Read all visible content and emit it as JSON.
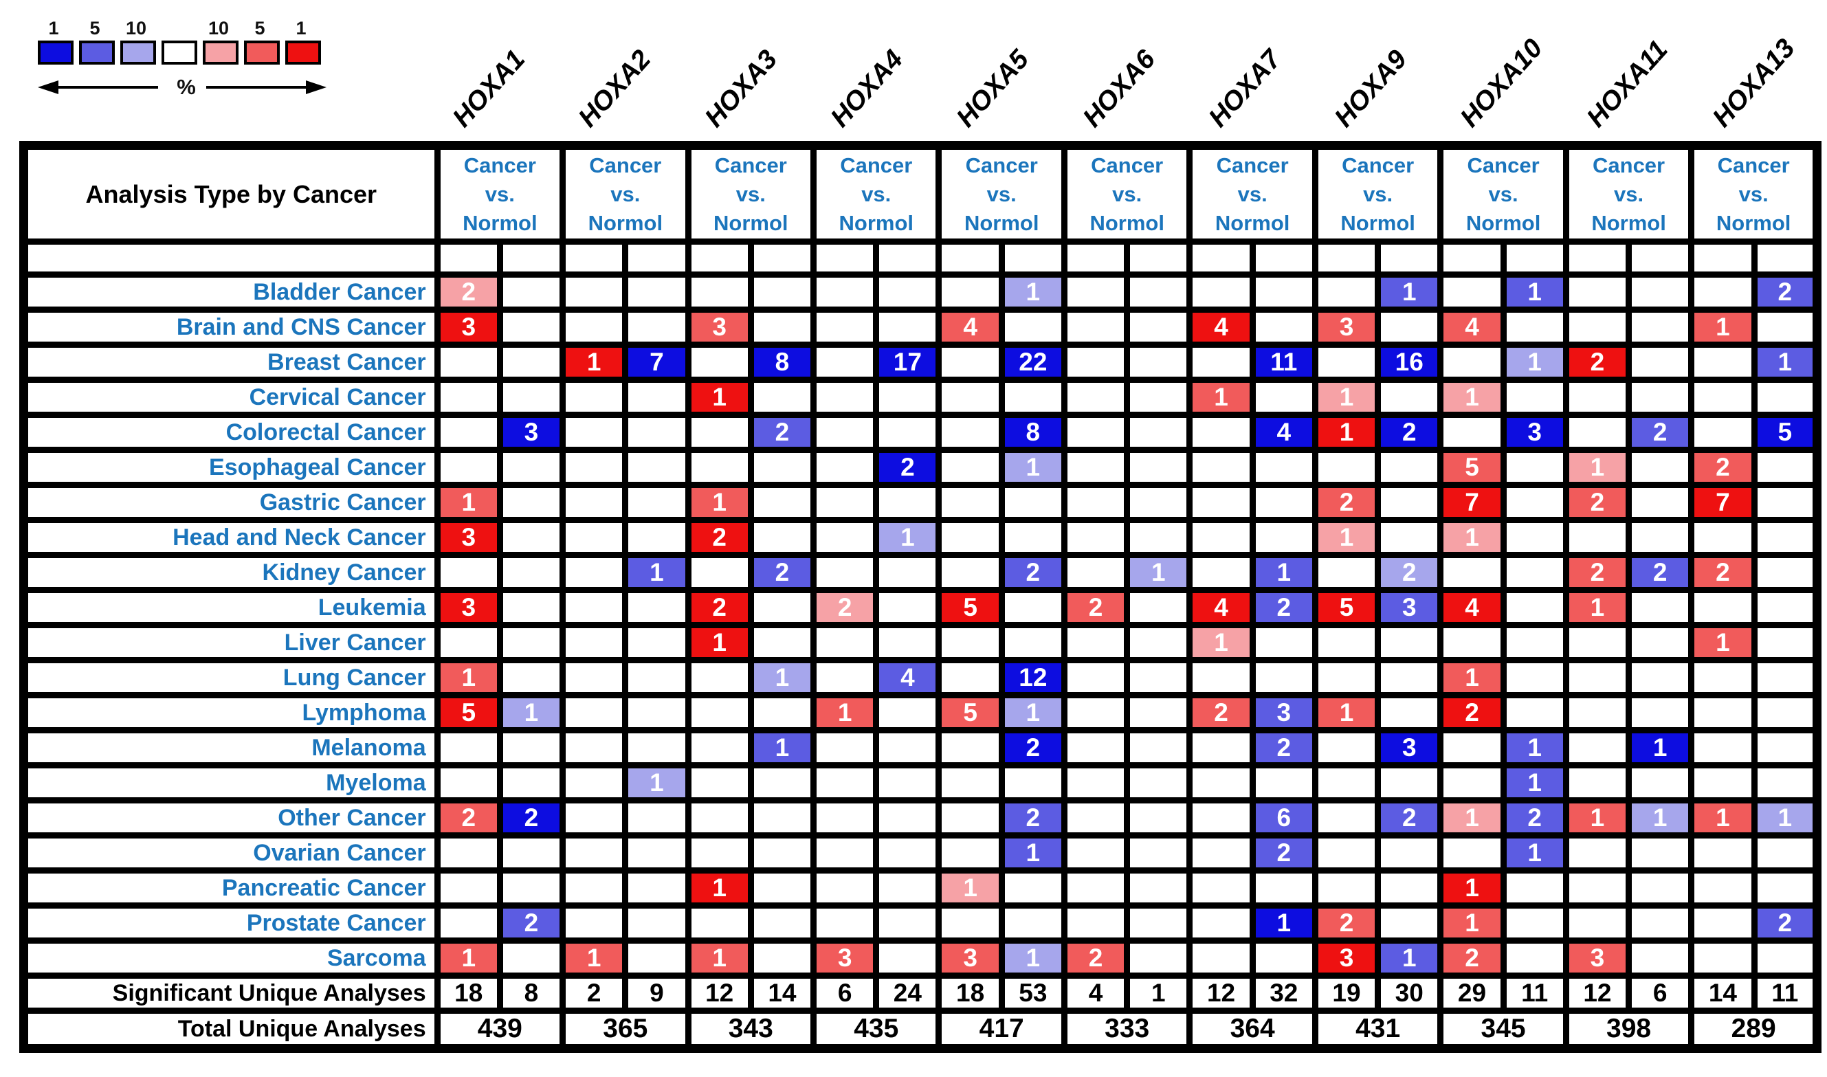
{
  "legend": {
    "percent_label": "%",
    "boxes": [
      {
        "label": "1",
        "tier": "b1"
      },
      {
        "label": "5",
        "tier": "b5"
      },
      {
        "label": "10",
        "tier": "b10"
      },
      {
        "label": "",
        "tier": "white"
      },
      {
        "label": "10",
        "tier": "r10"
      },
      {
        "label": "5",
        "tier": "r5"
      },
      {
        "label": "1",
        "tier": "r1"
      }
    ]
  },
  "palette": {
    "b1": "#0d0de0",
    "b5": "#5c5ce2",
    "b10": "#a6a6ec",
    "white": "#ffffff",
    "r10": "#f6a2a6",
    "r5": "#f15b5b",
    "r1": "#ee1111",
    "label_blue": "#1b75bc",
    "border_black": "#000000"
  },
  "chart_data": {
    "type": "heatmap",
    "corner_label": "Analysis Type by Cancer",
    "column_header_lines": [
      "Cancer",
      "vs.",
      "Normol"
    ],
    "columns": [
      "HOXA1",
      "HOXA2",
      "HOXA3",
      "HOXA4",
      "HOXA5",
      "HOXA6",
      "HOXA7",
      "HOXA9",
      "HOXA10",
      "HOXA11",
      "HOXA13"
    ],
    "subcolumns_per_gene": [
      "L",
      "R"
    ],
    "tier_meaning": "legend percentile tiers: b=blue scale 1/5/10%, r=red scale 10/5/1%",
    "rows": [
      {
        "label": "Bladder Cancer",
        "cells": [
          [
            0,
            "L",
            2,
            "r10"
          ],
          [
            4,
            "R",
            1,
            "b10"
          ],
          [
            7,
            "R",
            1,
            "b5"
          ],
          [
            8,
            "R",
            1,
            "b5"
          ],
          [
            10,
            "R",
            2,
            "b5"
          ]
        ]
      },
      {
        "label": "Brain and CNS Cancer",
        "cells": [
          [
            0,
            "L",
            3,
            "r1"
          ],
          [
            2,
            "L",
            3,
            "r5"
          ],
          [
            4,
            "L",
            4,
            "r5"
          ],
          [
            6,
            "L",
            4,
            "r1"
          ],
          [
            7,
            "L",
            3,
            "r5"
          ],
          [
            8,
            "L",
            4,
            "r5"
          ],
          [
            10,
            "L",
            1,
            "r5"
          ]
        ]
      },
      {
        "label": "Breast Cancer",
        "cells": [
          [
            1,
            "L",
            1,
            "r1"
          ],
          [
            1,
            "R",
            7,
            "b1"
          ],
          [
            2,
            "R",
            8,
            "b1"
          ],
          [
            3,
            "R",
            17,
            "b1"
          ],
          [
            4,
            "R",
            22,
            "b1"
          ],
          [
            6,
            "R",
            11,
            "b1"
          ],
          [
            7,
            "R",
            16,
            "b1"
          ],
          [
            8,
            "R",
            1,
            "b10"
          ],
          [
            9,
            "L",
            2,
            "r1"
          ],
          [
            10,
            "R",
            1,
            "b5"
          ]
        ]
      },
      {
        "label": "Cervical Cancer",
        "cells": [
          [
            2,
            "L",
            1,
            "r1"
          ],
          [
            6,
            "L",
            1,
            "r5"
          ],
          [
            7,
            "L",
            1,
            "r10"
          ],
          [
            8,
            "L",
            1,
            "r10"
          ]
        ]
      },
      {
        "label": "Colorectal Cancer",
        "cells": [
          [
            0,
            "R",
            3,
            "b1"
          ],
          [
            2,
            "R",
            2,
            "b5"
          ],
          [
            4,
            "R",
            8,
            "b1"
          ],
          [
            6,
            "R",
            4,
            "b1"
          ],
          [
            7,
            "L",
            1,
            "r1"
          ],
          [
            7,
            "R",
            2,
            "b1"
          ],
          [
            8,
            "R",
            3,
            "b1"
          ],
          [
            9,
            "R",
            2,
            "b5"
          ],
          [
            10,
            "R",
            5,
            "b1"
          ]
        ]
      },
      {
        "label": "Esophageal Cancer",
        "cells": [
          [
            3,
            "R",
            2,
            "b1"
          ],
          [
            4,
            "R",
            1,
            "b10"
          ],
          [
            8,
            "L",
            5,
            "r5"
          ],
          [
            9,
            "L",
            1,
            "r10"
          ],
          [
            10,
            "L",
            2,
            "r5"
          ]
        ]
      },
      {
        "label": "Gastric Cancer",
        "cells": [
          [
            0,
            "L",
            1,
            "r5"
          ],
          [
            2,
            "L",
            1,
            "r5"
          ],
          [
            7,
            "L",
            2,
            "r5"
          ],
          [
            8,
            "L",
            7,
            "r1"
          ],
          [
            9,
            "L",
            2,
            "r5"
          ],
          [
            10,
            "L",
            7,
            "r1"
          ]
        ]
      },
      {
        "label": "Head and Neck Cancer",
        "cells": [
          [
            0,
            "L",
            3,
            "r1"
          ],
          [
            2,
            "L",
            2,
            "r1"
          ],
          [
            3,
            "R",
            1,
            "b10"
          ],
          [
            7,
            "L",
            1,
            "r10"
          ],
          [
            8,
            "L",
            1,
            "r10"
          ]
        ]
      },
      {
        "label": "Kidney Cancer",
        "cells": [
          [
            1,
            "R",
            1,
            "b5"
          ],
          [
            2,
            "R",
            2,
            "b5"
          ],
          [
            4,
            "R",
            2,
            "b5"
          ],
          [
            5,
            "R",
            1,
            "b10"
          ],
          [
            6,
            "R",
            1,
            "b5"
          ],
          [
            7,
            "R",
            2,
            "b10"
          ],
          [
            9,
            "L",
            2,
            "r5"
          ],
          [
            9,
            "R",
            2,
            "b5"
          ],
          [
            10,
            "L",
            2,
            "r5"
          ]
        ]
      },
      {
        "label": "Leukemia",
        "cells": [
          [
            0,
            "L",
            3,
            "r1"
          ],
          [
            2,
            "L",
            2,
            "r1"
          ],
          [
            3,
            "L",
            2,
            "r10"
          ],
          [
            4,
            "L",
            5,
            "r1"
          ],
          [
            5,
            "L",
            2,
            "r5"
          ],
          [
            6,
            "L",
            4,
            "r1"
          ],
          [
            6,
            "R",
            2,
            "b5"
          ],
          [
            7,
            "L",
            5,
            "r1"
          ],
          [
            7,
            "R",
            3,
            "b5"
          ],
          [
            8,
            "L",
            4,
            "r1"
          ],
          [
            9,
            "L",
            1,
            "r5"
          ]
        ]
      },
      {
        "label": "Liver Cancer",
        "cells": [
          [
            2,
            "L",
            1,
            "r1"
          ],
          [
            6,
            "L",
            1,
            "r10"
          ],
          [
            10,
            "L",
            1,
            "r5"
          ]
        ]
      },
      {
        "label": "Lung Cancer",
        "cells": [
          [
            0,
            "L",
            1,
            "r5"
          ],
          [
            2,
            "R",
            1,
            "b10"
          ],
          [
            3,
            "R",
            4,
            "b5"
          ],
          [
            4,
            "R",
            12,
            "b1"
          ],
          [
            8,
            "L",
            1,
            "r5"
          ]
        ]
      },
      {
        "label": "Lymphoma",
        "cells": [
          [
            0,
            "L",
            5,
            "r1"
          ],
          [
            0,
            "R",
            1,
            "b10"
          ],
          [
            3,
            "L",
            1,
            "r5"
          ],
          [
            4,
            "L",
            5,
            "r5"
          ],
          [
            4,
            "R",
            1,
            "b10"
          ],
          [
            6,
            "L",
            2,
            "r5"
          ],
          [
            6,
            "R",
            3,
            "b5"
          ],
          [
            7,
            "L",
            1,
            "r5"
          ],
          [
            8,
            "L",
            2,
            "r1"
          ]
        ]
      },
      {
        "label": "Melanoma",
        "cells": [
          [
            2,
            "R",
            1,
            "b5"
          ],
          [
            4,
            "R",
            2,
            "b1"
          ],
          [
            6,
            "R",
            2,
            "b5"
          ],
          [
            7,
            "R",
            3,
            "b1"
          ],
          [
            8,
            "R",
            1,
            "b5"
          ],
          [
            9,
            "R",
            1,
            "b1"
          ]
        ]
      },
      {
        "label": "Myeloma",
        "cells": [
          [
            1,
            "R",
            1,
            "b10"
          ],
          [
            8,
            "R",
            1,
            "b5"
          ]
        ]
      },
      {
        "label": "Other Cancer",
        "cells": [
          [
            0,
            "L",
            2,
            "r5"
          ],
          [
            0,
            "R",
            2,
            "b1"
          ],
          [
            4,
            "R",
            2,
            "b5"
          ],
          [
            6,
            "R",
            6,
            "b5"
          ],
          [
            7,
            "R",
            2,
            "b5"
          ],
          [
            8,
            "L",
            1,
            "r10"
          ],
          [
            8,
            "R",
            2,
            "b5"
          ],
          [
            9,
            "L",
            1,
            "r5"
          ],
          [
            9,
            "R",
            1,
            "b10"
          ],
          [
            10,
            "L",
            1,
            "r5"
          ],
          [
            10,
            "R",
            1,
            "b10"
          ]
        ]
      },
      {
        "label": "Ovarian Cancer",
        "cells": [
          [
            4,
            "R",
            1,
            "b5"
          ],
          [
            6,
            "R",
            2,
            "b5"
          ],
          [
            8,
            "R",
            1,
            "b5"
          ]
        ]
      },
      {
        "label": "Pancreatic Cancer",
        "cells": [
          [
            2,
            "L",
            1,
            "r1"
          ],
          [
            4,
            "L",
            1,
            "r10"
          ],
          [
            8,
            "L",
            1,
            "r1"
          ]
        ]
      },
      {
        "label": "Prostate Cancer",
        "cells": [
          [
            0,
            "R",
            2,
            "b5"
          ],
          [
            6,
            "R",
            1,
            "b1"
          ],
          [
            7,
            "L",
            2,
            "r5"
          ],
          [
            8,
            "L",
            1,
            "r5"
          ],
          [
            10,
            "R",
            2,
            "b5"
          ]
        ]
      },
      {
        "label": "Sarcoma",
        "cells": [
          [
            0,
            "L",
            1,
            "r5"
          ],
          [
            1,
            "L",
            1,
            "r5"
          ],
          [
            2,
            "L",
            1,
            "r5"
          ],
          [
            3,
            "L",
            3,
            "r5"
          ],
          [
            4,
            "L",
            3,
            "r5"
          ],
          [
            4,
            "R",
            1,
            "b10"
          ],
          [
            5,
            "L",
            2,
            "r5"
          ],
          [
            7,
            "L",
            3,
            "r1"
          ],
          [
            7,
            "R",
            1,
            "b5"
          ],
          [
            8,
            "L",
            2,
            "r5"
          ],
          [
            9,
            "L",
            3,
            "r5"
          ]
        ]
      }
    ],
    "summary": {
      "significant_label": "Significant Unique Analyses",
      "significant_values": [
        18,
        8,
        2,
        9,
        12,
        14,
        6,
        24,
        18,
        53,
        4,
        1,
        12,
        32,
        19,
        30,
        29,
        11,
        12,
        6,
        14,
        11
      ],
      "total_label": "Total Unique Analyses",
      "total_values": [
        439,
        365,
        343,
        435,
        417,
        333,
        364,
        431,
        345,
        398,
        289
      ]
    }
  }
}
